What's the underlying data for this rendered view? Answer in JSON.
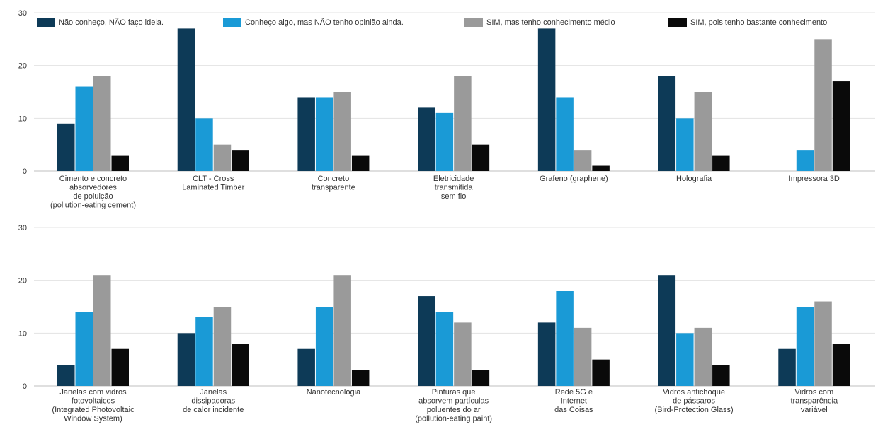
{
  "colors": {
    "dark_navy": "#0d3a57",
    "light_blue": "#1a9ad6",
    "gray": "#9a9a9a",
    "black": "#0a0a0a",
    "grid": "#e3e3e3",
    "axis": "#bfbfbf"
  },
  "chart_data": [
    {
      "type": "bar",
      "ylim": [
        0,
        30
      ],
      "yticks": [
        0,
        10,
        20,
        30
      ],
      "legend_position": "top",
      "grid": true,
      "series": [
        {
          "name": "Não conheço, NÃO faço ideia.",
          "values": [
            9,
            27,
            14,
            12,
            27,
            18,
            0
          ]
        },
        {
          "name": "Conheço algo, mas NÃO tenho opinião ainda.",
          "values": [
            16,
            10,
            14,
            11,
            14,
            10,
            4
          ]
        },
        {
          "name": "SIM, mas tenho conhecimento médio",
          "values": [
            18,
            5,
            15,
            18,
            4,
            15,
            25
          ]
        },
        {
          "name": "SIM, pois tenho bastante conhecimento",
          "values": [
            3,
            4,
            3,
            5,
            1,
            3,
            17
          ]
        }
      ],
      "categories": [
        [
          "Cimento e concreto",
          "absorvedores",
          "de poluição",
          "(pollution-eating cement)"
        ],
        [
          "CLT - Cross",
          "Laminated Timber"
        ],
        [
          "Concreto",
          "transparente"
        ],
        [
          "Eletricidade",
          "transmitida",
          "sem fio"
        ],
        [
          "Grafeno (graphene)"
        ],
        [
          "Holografia"
        ],
        [
          "Impressora 3D"
        ]
      ]
    },
    {
      "type": "bar",
      "ylim": [
        0,
        30
      ],
      "yticks": [
        0,
        10,
        20,
        30
      ],
      "grid": true,
      "series": [
        {
          "name": "Não conheço, NÃO faço ideia.",
          "values": [
            4,
            10,
            7,
            17,
            12,
            21,
            7
          ]
        },
        {
          "name": "Conheço algo, mas NÃO tenho opinião ainda.",
          "values": [
            14,
            13,
            15,
            14,
            18,
            10,
            15
          ]
        },
        {
          "name": "SIM, mas tenho conhecimento médio",
          "values": [
            21,
            15,
            21,
            12,
            11,
            11,
            16
          ]
        },
        {
          "name": "SIM, pois tenho bastante conhecimento",
          "values": [
            7,
            8,
            3,
            3,
            5,
            4,
            8
          ]
        }
      ],
      "categories": [
        [
          "Janelas com vidros",
          "fotovoltaicos",
          "(Integrated Photovoltaic",
          "Window System)"
        ],
        [
          "Janelas",
          "dissipadoras",
          "de calor incidente"
        ],
        [
          "Nanotecnologia"
        ],
        [
          "Pinturas que",
          "absorvem partículas",
          "poluentes do ar",
          "(pollution-eating paint)"
        ],
        [
          "Rede 5G e",
          "Internet",
          "das Coisas"
        ],
        [
          "Vidros antichoque",
          "de pássaros",
          "(Bird-Protection Glass)"
        ],
        [
          "Vidros com",
          "transparência",
          "variável"
        ]
      ]
    }
  ]
}
